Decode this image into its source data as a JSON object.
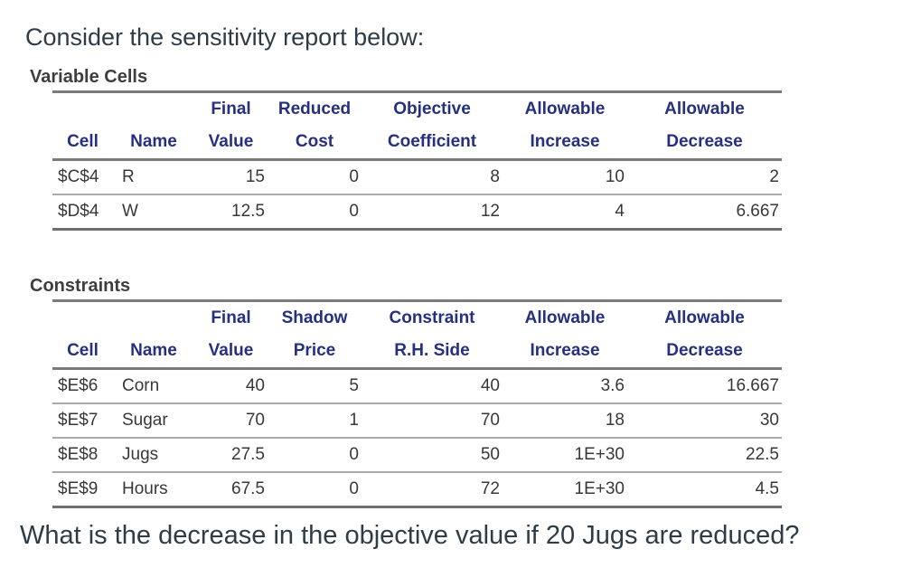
{
  "page": {
    "intro": "Consider the sensitivity report below:",
    "question": "What is the decrease in the objective value if 20 Jugs are reduced?"
  },
  "variable_cells": {
    "section_label": "Variable Cells",
    "header_line1": [
      "",
      "",
      "Final",
      "Reduced",
      "Objective",
      "Allowable",
      "Allowable"
    ],
    "header_line2": [
      "Cell",
      "Name",
      "Value",
      "Cost",
      "Coefficient",
      "Increase",
      "Decrease"
    ],
    "rows": [
      [
        "$C$4",
        "R",
        "15",
        "0",
        "8",
        "10",
        "2"
      ],
      [
        "$D$4",
        "W",
        "12.5",
        "0",
        "12",
        "4",
        "6.667"
      ]
    ]
  },
  "constraints": {
    "section_label": "Constraints",
    "header_line1": [
      "",
      "",
      "Final",
      "Shadow",
      "Constraint",
      "Allowable",
      "Allowable"
    ],
    "header_line2": [
      "Cell",
      "Name",
      "Value",
      "Price",
      "R.H. Side",
      "Increase",
      "Decrease"
    ],
    "rows": [
      [
        "$E$6",
        "Corn",
        "40",
        "5",
        "40",
        "3.6",
        "16.667"
      ],
      [
        "$E$7",
        "Sugar",
        "70",
        "1",
        "70",
        "18",
        "30"
      ],
      [
        "$E$8",
        "Jugs",
        "27.5",
        "0",
        "50",
        "1E+30",
        "22.5"
      ],
      [
        "$E$9",
        "Hours",
        "67.5",
        "0",
        "72",
        "1E+30",
        "4.5"
      ]
    ]
  },
  "colors": {
    "header_text": "#26307F",
    "body_text": "#383838",
    "title_text": "#2E3C47",
    "rule_thick": "#7B7B7B",
    "rule_thin": "#ABABAB"
  }
}
